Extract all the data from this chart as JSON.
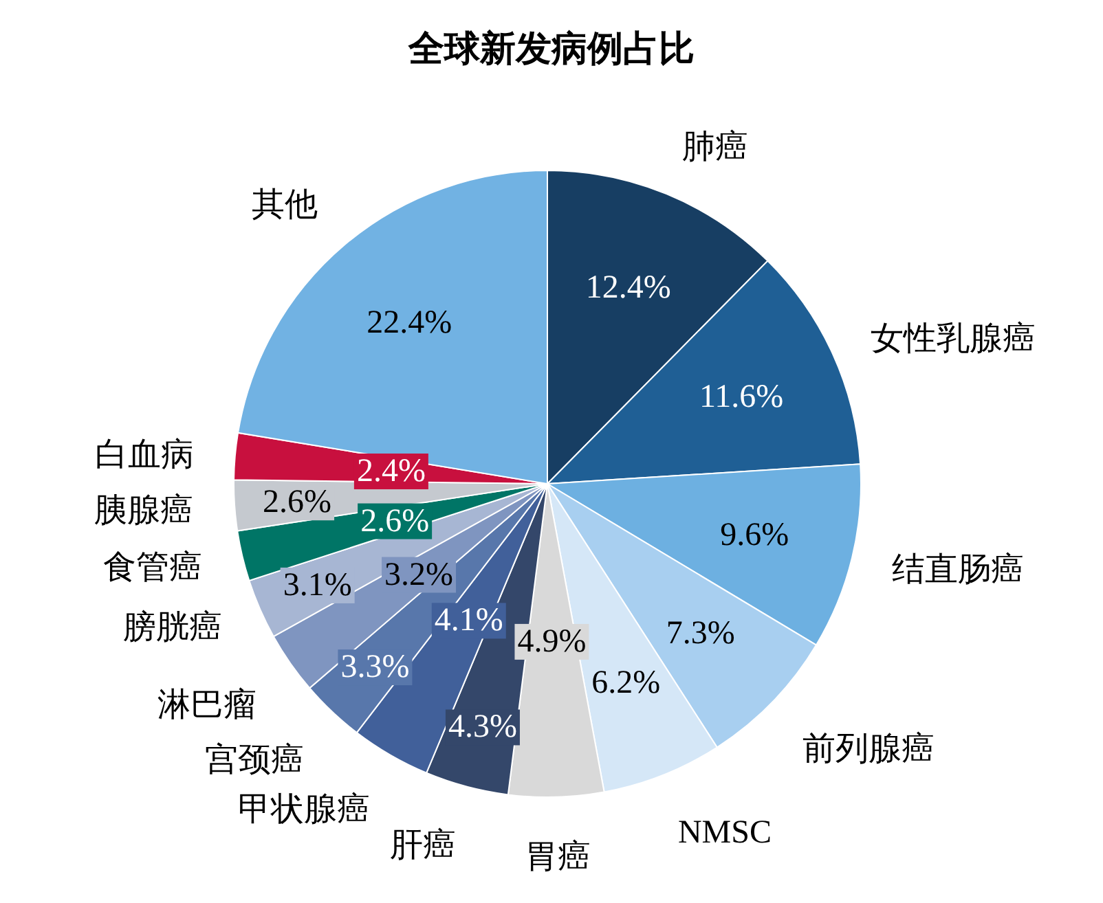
{
  "chart_data": {
    "type": "pie",
    "title": "全球新发病例占比",
    "categories": [
      "肺癌",
      "女性乳腺癌",
      "结直肠癌",
      "前列腺癌",
      "NMSC",
      "胃癌",
      "肝癌",
      "甲状腺癌",
      "宫颈癌",
      "淋巴瘤",
      "膀胱癌",
      "食管癌",
      "胰腺癌",
      "白血病",
      "其他"
    ],
    "values": [
      12.4,
      11.6,
      9.6,
      7.3,
      6.2,
      4.9,
      4.3,
      4.1,
      3.3,
      3.2,
      3.1,
      2.6,
      2.6,
      2.4,
      22.4
    ],
    "value_labels": [
      "12.4%",
      "11.6%",
      "9.6%",
      "7.3%",
      "6.2%",
      "4.9%",
      "4.3%",
      "4.1%",
      "3.3%",
      "3.2%",
      "3.1%",
      "2.6%",
      "2.6%",
      "2.4%",
      "22.4%"
    ],
    "colors": [
      "#173e63",
      "#1f5f95",
      "#6db0e1",
      "#a8cff0",
      "#d5e7f7",
      "#d9d9d9",
      "#34476a",
      "#41609a",
      "#5877ab",
      "#7f95c0",
      "#a7b6d3",
      "#007566",
      "#c5c9cf",
      "#c8103e",
      "#71b2e3"
    ]
  }
}
